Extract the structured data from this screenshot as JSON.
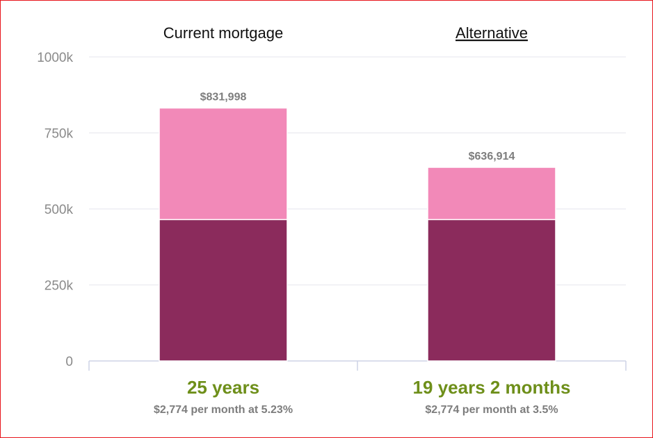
{
  "chart_data": {
    "type": "bar",
    "stacked": true,
    "categories": [
      "Current mortgage",
      "Alternative"
    ],
    "series": [
      {
        "values": [
          465000,
          465000
        ],
        "color": "#8b2b5c"
      },
      {
        "values": [
          366998,
          171914
        ],
        "color": "#f289b8"
      }
    ],
    "totals": [
      831998,
      636914
    ],
    "total_labels": [
      "$831,998",
      "$636,914"
    ],
    "y_ticks": [
      {
        "value": 0,
        "label": "0"
      },
      {
        "value": 250000,
        "label": "250k"
      },
      {
        "value": 500000,
        "label": "500k"
      },
      {
        "value": 750000,
        "label": "750k"
      },
      {
        "value": 1000000,
        "label": "1000k"
      }
    ],
    "ylim": [
      0,
      1000000
    ],
    "grid": true,
    "legend": "none",
    "terms": [
      "25 years",
      "19 years 2 months"
    ],
    "payments": [
      "$2,774 per month at 5.23%",
      "$2,774 per month at 3.5%"
    ],
    "term_color": "#6e8f1a",
    "border_color": "#e8141c",
    "alternative_underlined": true
  }
}
